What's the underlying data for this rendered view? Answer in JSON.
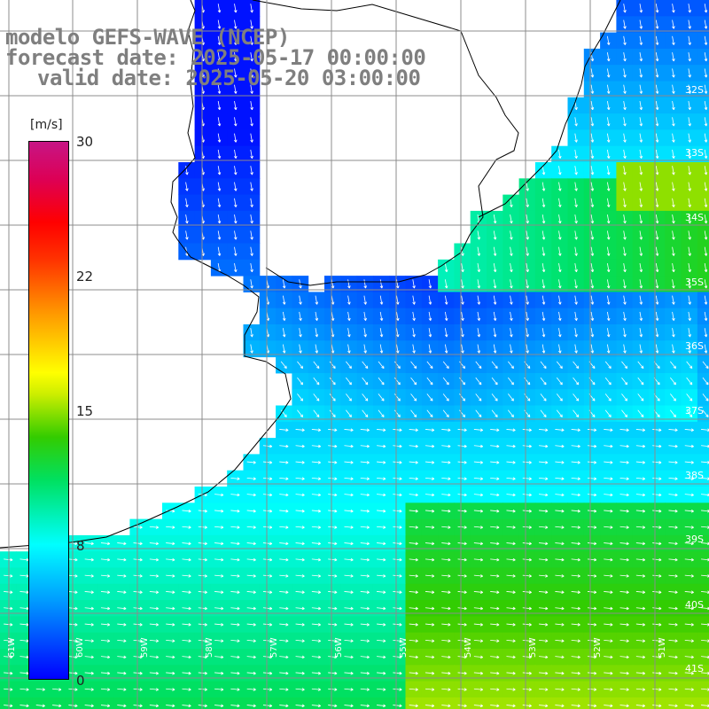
{
  "title": {
    "model": "modelo GEFS-WAVE (NCEP)",
    "forecast": "forecast date: 2025-05-17 00:00:00",
    "valid": "valid date: 2025-05-20 03:00:00"
  },
  "legend": {
    "unit": "[m/s]",
    "ticks": [
      "30",
      "22",
      "15",
      "8",
      "0"
    ],
    "min": 0,
    "max": 30
  },
  "lat_labels": [
    "32S",
    "33S",
    "34S",
    "35S",
    "36S",
    "37S",
    "38S",
    "39S",
    "40S",
    "41S"
  ],
  "lon_labels": [
    "61W",
    "60W",
    "59W",
    "58W",
    "57W",
    "56W",
    "55W",
    "54W",
    "53W",
    "52W",
    "51W"
  ],
  "colors": {
    "land": "#ffffff",
    "coast": "#000000",
    "grid": "#8c8c8c",
    "title": "#7f7f7f",
    "arrow": "#ffffff"
  }
}
